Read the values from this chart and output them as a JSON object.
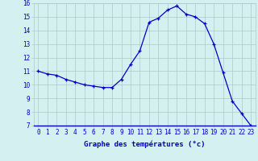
{
  "x": [
    0,
    1,
    2,
    3,
    4,
    5,
    6,
    7,
    8,
    9,
    10,
    11,
    12,
    13,
    14,
    15,
    16,
    17,
    18,
    19,
    20,
    21,
    22,
    23
  ],
  "y": [
    11.0,
    10.8,
    10.7,
    10.4,
    10.2,
    10.0,
    9.9,
    9.8,
    9.8,
    10.4,
    11.5,
    12.5,
    14.6,
    14.9,
    15.5,
    15.8,
    15.2,
    15.0,
    14.5,
    13.0,
    10.9,
    8.8,
    7.9,
    7.0
  ],
  "xlabel": "Graphe des températures (°c)",
  "ylim": [
    7,
    16
  ],
  "xlim_min": -0.5,
  "xlim_max": 23.5,
  "yticks": [
    7,
    8,
    9,
    10,
    11,
    12,
    13,
    14,
    15,
    16
  ],
  "xtick_labels": [
    "0",
    "1",
    "2",
    "3",
    "4",
    "5",
    "6",
    "7",
    "8",
    "9",
    "10",
    "11",
    "12",
    "13",
    "14",
    "15",
    "16",
    "17",
    "18",
    "19",
    "20",
    "21",
    "22",
    "23"
  ],
  "line_color": "#0000cc",
  "marker_color": "#0000cc",
  "bg_color": "#d4f0f0",
  "grid_color": "#b0c8c8",
  "label_color": "#0000cc",
  "tick_fontsize": 5.5,
  "xlabel_fontsize": 6.5
}
